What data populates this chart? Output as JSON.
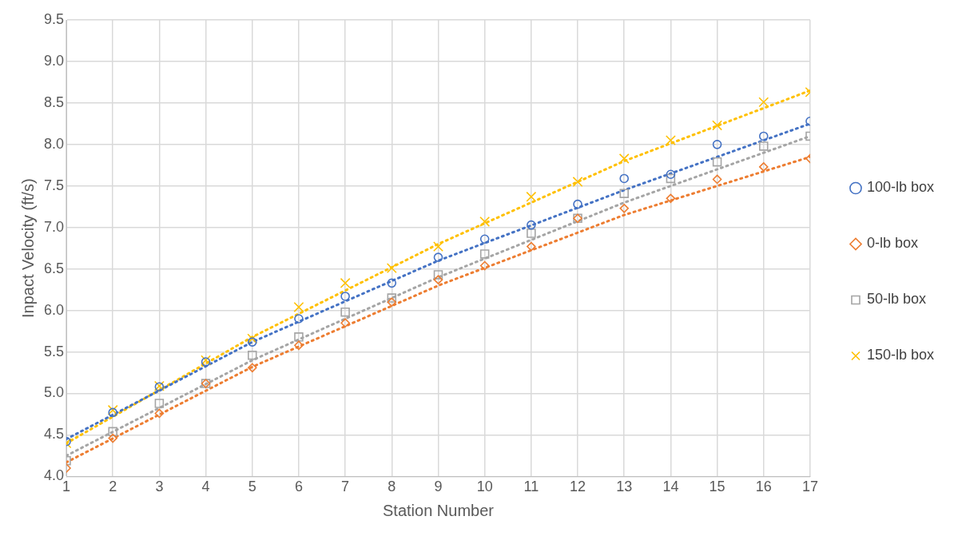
{
  "chart_data": {
    "type": "scatter",
    "xlabel": "Station Number",
    "ylabel": "Inpact Velocity (ft/s)",
    "xlim": [
      1,
      17
    ],
    "xticks": [
      1,
      2,
      3,
      4,
      5,
      6,
      7,
      8,
      9,
      10,
      11,
      12,
      13,
      14,
      15,
      16,
      17
    ],
    "ylim": [
      4.0,
      9.5
    ],
    "yticks": [
      {
        "value": 4.0,
        "label": "4.0"
      },
      {
        "value": 4.5,
        "label": "4.5"
      },
      {
        "value": 5.0,
        "label": "5.0"
      },
      {
        "value": 5.5,
        "label": "5.5"
      },
      {
        "value": 6.0,
        "label": "6.0"
      },
      {
        "value": 6.5,
        "label": "6.5"
      },
      {
        "value": 7.0,
        "label": "7.0"
      },
      {
        "value": 7.5,
        "label": "7.5"
      },
      {
        "value": 8.0,
        "label": "8.0"
      },
      {
        "value": 8.5,
        "label": "8.5"
      },
      {
        "value": 9.0,
        "label": "9.0"
      },
      {
        "value": 9.5,
        "label": "9.5"
      }
    ],
    "x": [
      1,
      2,
      3,
      4,
      5,
      6,
      7,
      8,
      9,
      10,
      11,
      12,
      13,
      14,
      15,
      16,
      17
    ],
    "grid": true,
    "legend": "right",
    "series": [
      {
        "name": "100-lb box",
        "color": "#4472c4",
        "marker": "circle",
        "values": [
          4.42,
          4.77,
          5.08,
          5.38,
          5.62,
          5.9,
          6.17,
          6.33,
          6.64,
          6.86,
          7.03,
          7.28,
          7.59,
          7.64,
          8.0,
          8.1,
          8.28
        ]
      },
      {
        "name": "0-lb box",
        "color": "#ed7d31",
        "marker": "diamond",
        "values": [
          4.1,
          4.46,
          4.76,
          5.12,
          5.31,
          5.58,
          5.85,
          6.1,
          6.37,
          6.54,
          6.77,
          7.11,
          7.23,
          7.35,
          7.58,
          7.73,
          7.83
        ]
      },
      {
        "name": "50-lb box",
        "color": "#a5a5a5",
        "marker": "square",
        "values": [
          4.19,
          4.54,
          4.88,
          5.12,
          5.46,
          5.68,
          5.98,
          6.15,
          6.43,
          6.68,
          6.93,
          7.11,
          7.41,
          7.59,
          7.79,
          7.98,
          8.1
        ]
      },
      {
        "name": "150-lb box",
        "color": "#ffc000",
        "marker": "cross",
        "values": [
          4.4,
          4.8,
          5.09,
          5.4,
          5.66,
          6.04,
          6.33,
          6.51,
          6.77,
          7.07,
          7.37,
          7.55,
          7.83,
          8.05,
          8.23,
          8.51,
          8.63
        ]
      },
      {
        "type": "line",
        "color": "#4472c4",
        "line_style": "dotted",
        "marker": "none",
        "x": [
          1,
          5,
          9,
          13,
          17
        ],
        "values": [
          4.45,
          5.62,
          6.6,
          7.45,
          8.25
        ]
      },
      {
        "type": "line",
        "color": "#ed7d31",
        "line_style": "dotted",
        "marker": "none",
        "x": [
          1,
          5,
          9,
          13,
          17
        ],
        "values": [
          4.17,
          5.32,
          6.3,
          7.15,
          7.85
        ]
      },
      {
        "type": "line",
        "color": "#a5a5a5",
        "line_style": "dotted",
        "marker": "none",
        "x": [
          1,
          5,
          9,
          13,
          17
        ],
        "values": [
          4.25,
          5.4,
          6.4,
          7.3,
          8.1
        ]
      },
      {
        "type": "line",
        "color": "#ffc000",
        "line_style": "dotted",
        "marker": "none",
        "x": [
          1,
          5,
          9,
          13,
          17
        ],
        "values": [
          4.4,
          5.68,
          6.8,
          7.8,
          8.65
        ]
      }
    ]
  }
}
